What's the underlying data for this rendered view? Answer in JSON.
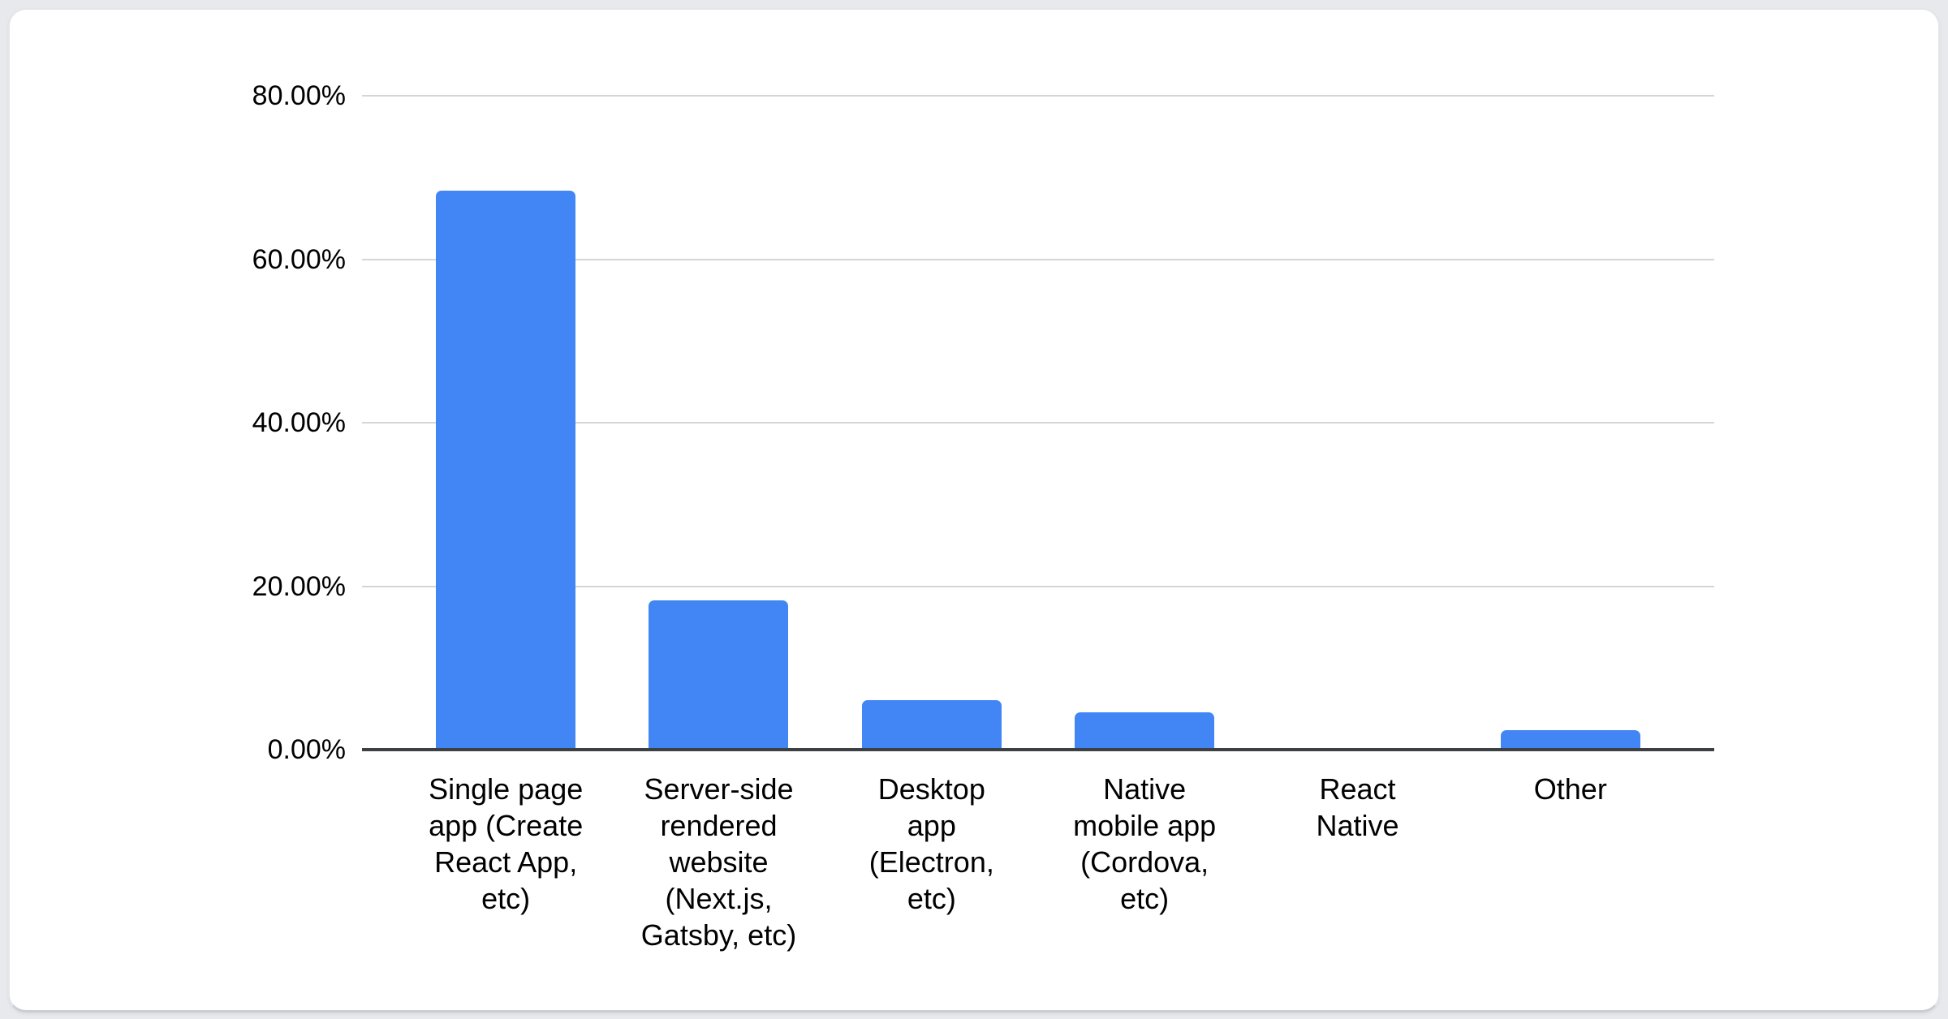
{
  "page": {
    "background_color": "#e7e9ec",
    "card_background_color": "#ffffff",
    "card_border_color": "#e3e6ea"
  },
  "chart_data": {
    "type": "bar",
    "categories": [
      "Single page app (Create React App, etc)",
      "Server-side rendered website (Next.js, Gatsby, etc)",
      "Desktop app (Electron, etc)",
      "Native mobile app (Cordova, etc)",
      "React Native",
      "Other"
    ],
    "category_display_lines": [
      "Single page\napp (Create\nReact App,\netc)",
      "Server-side\nrendered\nwebsite\n(Next.js,\nGatsby, etc)",
      "Desktop\napp\n(Electron,\netc)",
      "Native\nmobile app\n(Cordova,\netc)",
      "React\nNative",
      "Other"
    ],
    "values": [
      68.4,
      18.3,
      6.1,
      4.6,
      0,
      2.4
    ],
    "value_unit": "percent",
    "y_ticks": [
      "0.00%",
      "20.00%",
      "40.00%",
      "60.00%",
      "80.00%"
    ],
    "ylim": [
      0,
      80
    ],
    "xlabel": "",
    "ylabel": "",
    "grid": true,
    "legend": "none",
    "bar_color": "#4285f4",
    "gridline_color": "#d5d5d5",
    "axis_line_color": "#3c4043",
    "label_text_color": "#000000"
  }
}
